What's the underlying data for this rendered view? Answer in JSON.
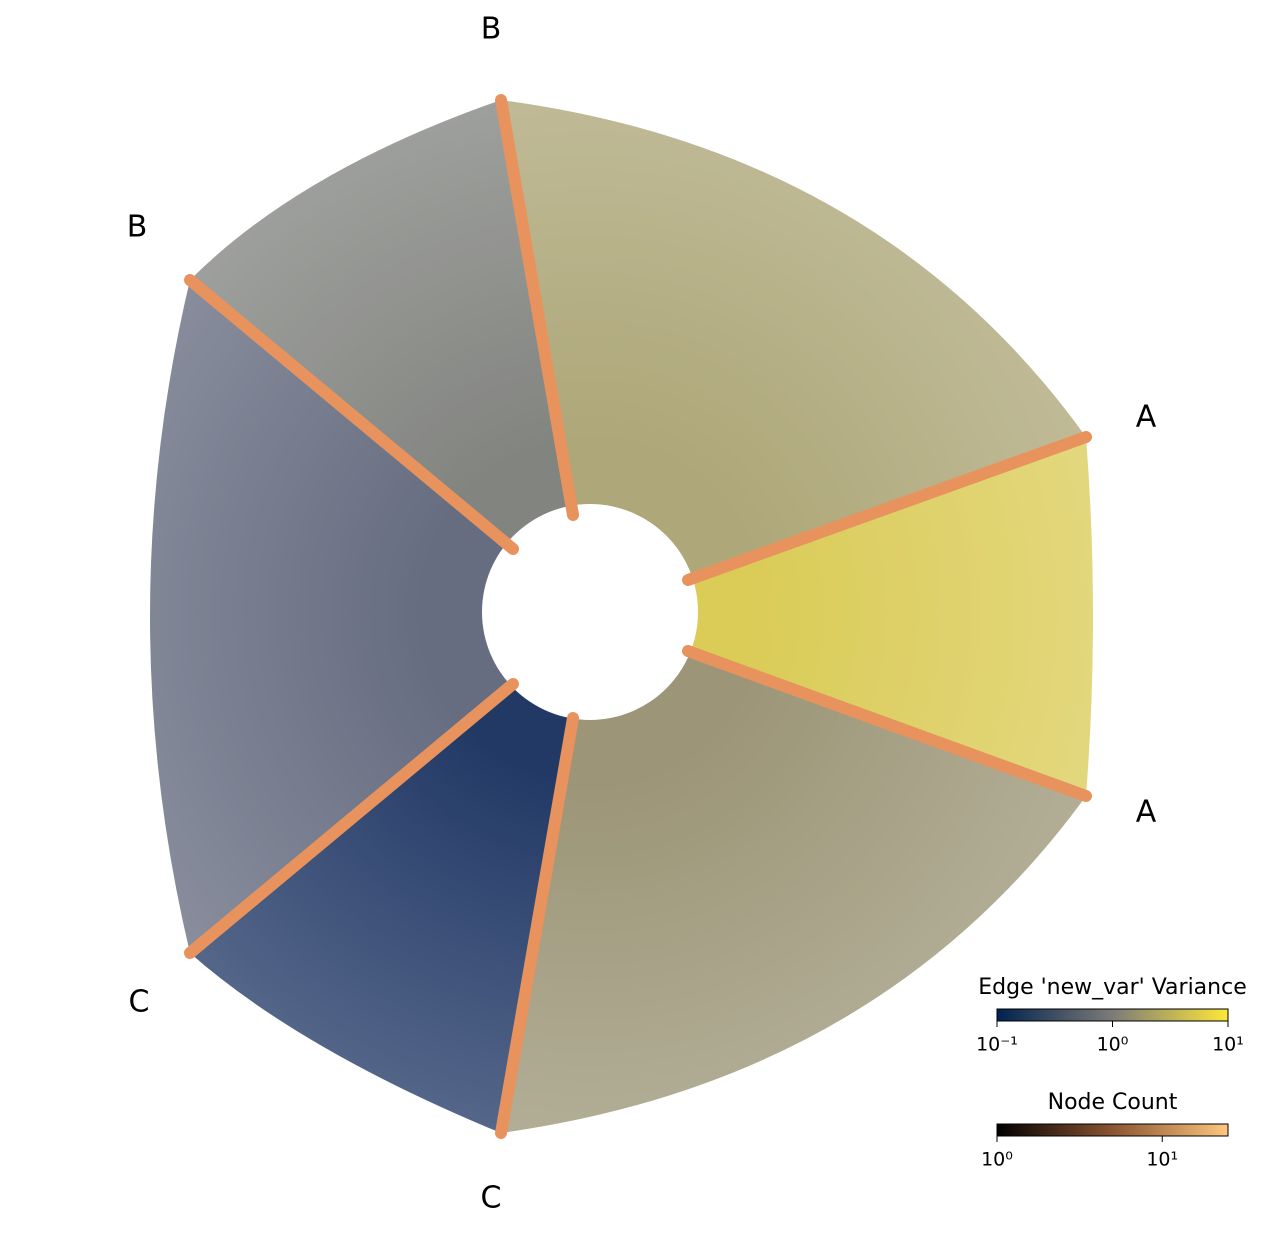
{
  "chart_data": {
    "type": "hive",
    "axis_labels": [
      "A",
      "A",
      "B",
      "B",
      "C",
      "C"
    ],
    "colorbars": [
      {
        "title": "Edge 'new_var' Variance",
        "scale": "log",
        "lim": [
          0.1,
          10
        ],
        "ticks": [
          {
            "value": 0.1,
            "label": "10⁻¹"
          },
          {
            "value": 1,
            "label": "10⁰"
          },
          {
            "value": 10,
            "label": "10¹"
          }
        ],
        "colors": [
          "#00224e",
          "#7c7b78",
          "#fee838"
        ]
      },
      {
        "title": "Node Count",
        "scale": "log",
        "lim": [
          1,
          25
        ],
        "ticks": [
          {
            "value": 1,
            "label": "10⁰"
          },
          {
            "value": 10,
            "label": "10¹"
          }
        ],
        "colors": [
          "#000000",
          "#8a5432",
          "#ffc77f"
        ]
      }
    ]
  }
}
